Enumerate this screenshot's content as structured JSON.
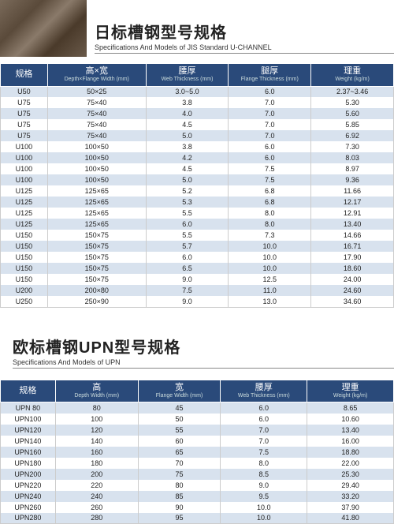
{
  "colors": {
    "header_bg": "#2a4a7a",
    "row_even": "#d8e2ee",
    "row_odd": "#ffffff",
    "border": "#cccccc",
    "title": "#222222"
  },
  "section1": {
    "title_cn": "日标槽钢型号规格",
    "title_en": "Specifications And Models of JIS Standard U-CHANNEL",
    "columns": [
      {
        "cn": "规格",
        "en": ""
      },
      {
        "cn": "高×宽",
        "en": "Depth×Flange Width (mm)"
      },
      {
        "cn": "腰厚",
        "en": "Web Thickness (mm)"
      },
      {
        "cn": "腿厚",
        "en": "Flange Thickness (mm)"
      },
      {
        "cn": "理重",
        "en": "Weight (kg/m)"
      }
    ],
    "rows": [
      [
        "U50",
        "50×25",
        "3.0~5.0",
        "6.0",
        "2.37~3.46"
      ],
      [
        "U75",
        "75×40",
        "3.8",
        "7.0",
        "5.30"
      ],
      [
        "U75",
        "75×40",
        "4.0",
        "7.0",
        "5.60"
      ],
      [
        "U75",
        "75×40",
        "4.5",
        "7.0",
        "5.85"
      ],
      [
        "U75",
        "75×40",
        "5.0",
        "7.0",
        "6.92"
      ],
      [
        "U100",
        "100×50",
        "3.8",
        "6.0",
        "7.30"
      ],
      [
        "U100",
        "100×50",
        "4.2",
        "6.0",
        "8.03"
      ],
      [
        "U100",
        "100×50",
        "4.5",
        "7.5",
        "8.97"
      ],
      [
        "U100",
        "100×50",
        "5.0",
        "7.5",
        "9.36"
      ],
      [
        "U125",
        "125×65",
        "5.2",
        "6.8",
        "11.66"
      ],
      [
        "U125",
        "125×65",
        "5.3",
        "6.8",
        "12.17"
      ],
      [
        "U125",
        "125×65",
        "5.5",
        "8.0",
        "12.91"
      ],
      [
        "U125",
        "125×65",
        "6.0",
        "8.0",
        "13.40"
      ],
      [
        "U150",
        "150×75",
        "5.5",
        "7.3",
        "14.66"
      ],
      [
        "U150",
        "150×75",
        "5.7",
        "10.0",
        "16.71"
      ],
      [
        "U150",
        "150×75",
        "6.0",
        "10.0",
        "17.90"
      ],
      [
        "U150",
        "150×75",
        "6.5",
        "10.0",
        "18.60"
      ],
      [
        "U150",
        "150×75",
        "9.0",
        "12.5",
        "24.00"
      ],
      [
        "U200",
        "200×80",
        "7.5",
        "11.0",
        "24.60"
      ],
      [
        "U250",
        "250×90",
        "9.0",
        "13.0",
        "34.60"
      ]
    ]
  },
  "section2": {
    "title_cn": "欧标槽钢UPN型号规格",
    "title_en": "Specifications And Models of UPN",
    "columns": [
      {
        "cn": "规格",
        "en": ""
      },
      {
        "cn": "高",
        "en": "Depth Width (mm)"
      },
      {
        "cn": "宽",
        "en": "Flange Width (mm)"
      },
      {
        "cn": "腰厚",
        "en": "Web Thickness (mm)"
      },
      {
        "cn": "理重",
        "en": "Weight (kg/m)"
      }
    ],
    "rows": [
      [
        "UPN 80",
        "80",
        "45",
        "6.0",
        "8.65"
      ],
      [
        "UPN100",
        "100",
        "50",
        "6.0",
        "10.60"
      ],
      [
        "UPN120",
        "120",
        "55",
        "7.0",
        "13.40"
      ],
      [
        "UPN140",
        "140",
        "60",
        "7.0",
        "16.00"
      ],
      [
        "UPN160",
        "160",
        "65",
        "7.5",
        "18.80"
      ],
      [
        "UPN180",
        "180",
        "70",
        "8.0",
        "22.00"
      ],
      [
        "UPN200",
        "200",
        "75",
        "8.5",
        "25.30"
      ],
      [
        "UPN220",
        "220",
        "80",
        "9.0",
        "29.40"
      ],
      [
        "UPN240",
        "240",
        "85",
        "9.5",
        "33.20"
      ],
      [
        "UPN260",
        "260",
        "90",
        "10.0",
        "37.90"
      ],
      [
        "UPN280",
        "280",
        "95",
        "10.0",
        "41.80"
      ]
    ]
  }
}
